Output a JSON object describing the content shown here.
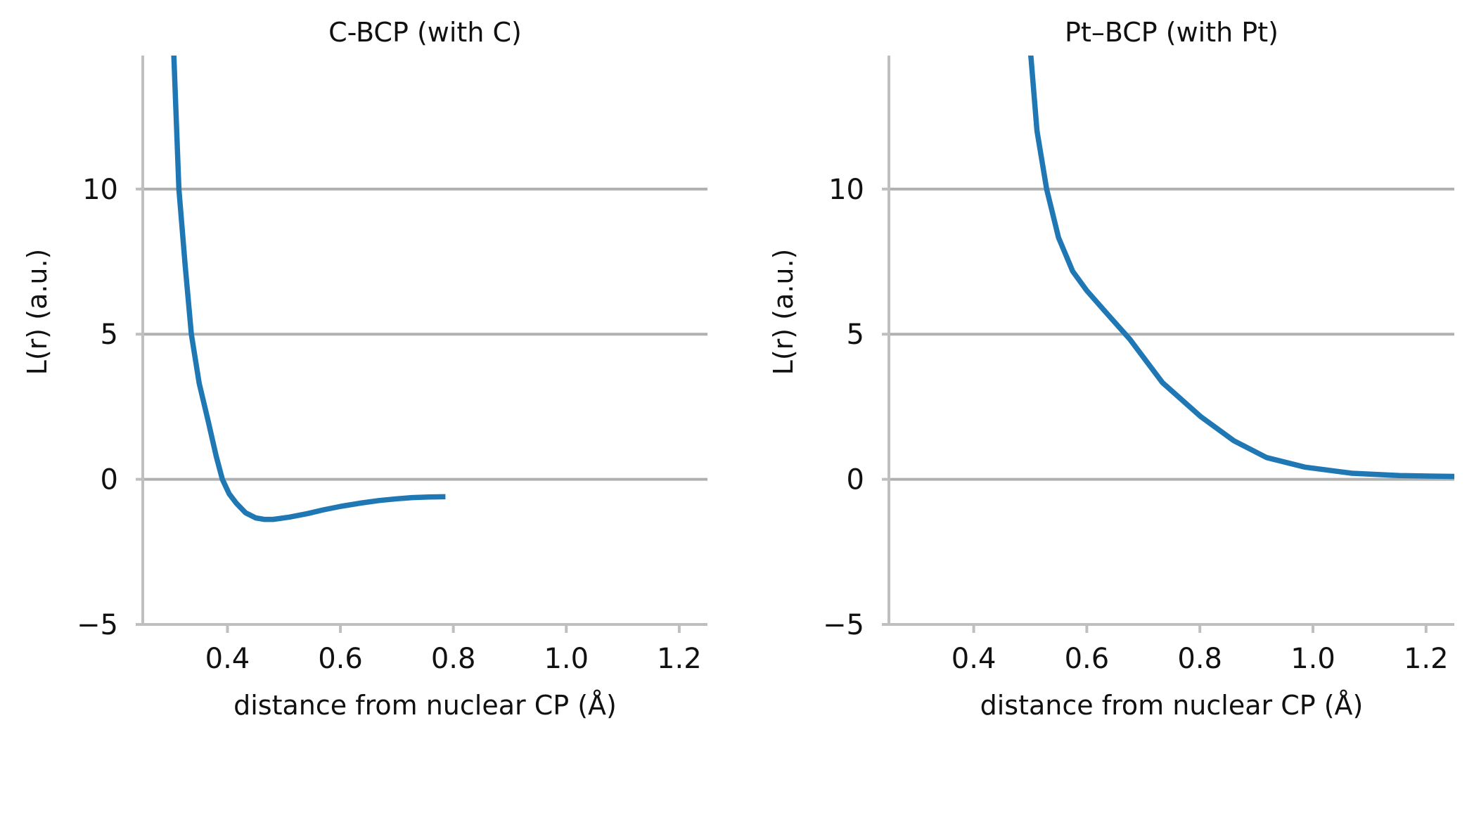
{
  "chart_data": [
    {
      "type": "line",
      "title": "C-BCP (with C)",
      "xlabel": "distance from nuclear CP (Å)",
      "ylabel": "L(r) (a.u.)",
      "xlim": [
        0.25,
        1.25
      ],
      "ylim": [
        -5,
        14.6
      ],
      "xticks": [
        "0.4",
        "0.6",
        "0.8",
        "1.0",
        "1.2"
      ],
      "xtick_values": [
        0.4,
        0.6,
        0.8,
        1.0,
        1.2
      ],
      "yticks": [
        "−5",
        "0",
        "5",
        "10"
      ],
      "ytick_values": [
        -5,
        0,
        5,
        10
      ],
      "grid": "y",
      "color": "#1f77b4",
      "series": [
        {
          "name": "C-BCP",
          "x": [
            0.3,
            0.305,
            0.314,
            0.325,
            0.336,
            0.35,
            0.366,
            0.38,
            0.391,
            0.403,
            0.416,
            0.432,
            0.45,
            0.465,
            0.481,
            0.51,
            0.542,
            0.57,
            0.601,
            0.635,
            0.668,
            0.7,
            0.727,
            0.757,
            0.786
          ],
          "y": [
            16.0,
            14.6,
            10.0,
            7.4,
            5.0,
            3.3,
            2.0,
            0.8,
            0.0,
            -0.5,
            -0.83,
            -1.15,
            -1.33,
            -1.38,
            -1.38,
            -1.3,
            -1.18,
            -1.05,
            -0.93,
            -0.82,
            -0.73,
            -0.67,
            -0.63,
            -0.61,
            -0.6
          ]
        }
      ]
    },
    {
      "type": "line",
      "title": "Pt–BCP (with Pt)",
      "xlabel": "distance from nuclear CP (Å)",
      "ylabel": "L(r) (a.u.)",
      "xlim": [
        0.25,
        1.25
      ],
      "ylim": [
        -5,
        14.6
      ],
      "xticks": [
        "0.4",
        "0.6",
        "0.8",
        "1.0",
        "1.2"
      ],
      "xtick_values": [
        0.4,
        0.6,
        0.8,
        1.0,
        1.2
      ],
      "yticks": [
        "−5",
        "0",
        "5",
        "10"
      ],
      "ytick_values": [
        -5,
        0,
        5,
        10
      ],
      "grid": "y",
      "color": "#1f77b4",
      "series": [
        {
          "name": "Pt-BCP",
          "x": [
            0.498,
            0.501,
            0.512,
            0.529,
            0.55,
            0.575,
            0.6,
            0.634,
            0.676,
            0.734,
            0.801,
            0.86,
            0.918,
            0.986,
            1.069,
            1.153,
            1.25
          ],
          "y": [
            16.0,
            14.6,
            12.0,
            10.0,
            8.33,
            7.17,
            6.5,
            5.75,
            4.83,
            3.33,
            2.17,
            1.33,
            0.75,
            0.42,
            0.21,
            0.13,
            0.1
          ]
        }
      ]
    }
  ]
}
